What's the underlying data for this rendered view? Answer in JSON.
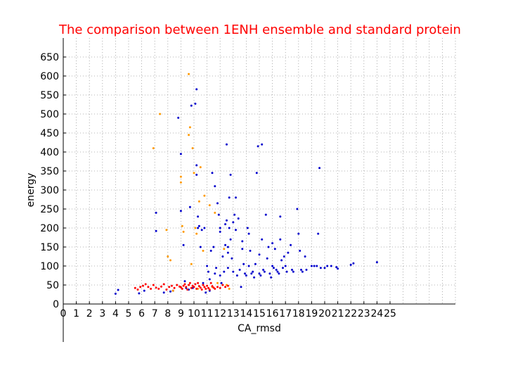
{
  "chart_data": {
    "type": "scatter",
    "title": "The comparison between 1ENH ensemble and standard protein",
    "title_color": "#ff0000",
    "xlabel": "CA_rmsd",
    "ylabel": "energy",
    "xlim": [
      0,
      30
    ],
    "ylim": [
      0,
      700
    ],
    "x_ticks": [
      0,
      1,
      2,
      3,
      4,
      5,
      6,
      7,
      8,
      9,
      10,
      11,
      12,
      13,
      14,
      15,
      16,
      17,
      18,
      19,
      20,
      21,
      22,
      23,
      24,
      25
    ],
    "y_ticks": [
      0,
      50,
      100,
      150,
      200,
      250,
      300,
      350,
      400,
      450,
      500,
      550,
      600,
      650
    ],
    "grid": true,
    "series": [
      {
        "color": "#0000cc",
        "points": [
          [
            4,
            27
          ],
          [
            4.2,
            37
          ],
          [
            5.8,
            28
          ],
          [
            6.2,
            35
          ],
          [
            7.1,
            240
          ],
          [
            7.1,
            192
          ],
          [
            7.7,
            30
          ],
          [
            8.2,
            33
          ],
          [
            8.4,
            35
          ],
          [
            8.8,
            490
          ],
          [
            9,
            395
          ],
          [
            9,
            245
          ],
          [
            9.2,
            155
          ],
          [
            9.3,
            60
          ],
          [
            9.4,
            42
          ],
          [
            9.6,
            38
          ],
          [
            9.7,
            255
          ],
          [
            9.8,
            522
          ],
          [
            9.9,
            42
          ],
          [
            10.1,
            527
          ],
          [
            10.2,
            565
          ],
          [
            10.2,
            365
          ],
          [
            10.2,
            340
          ],
          [
            10.3,
            230
          ],
          [
            10.3,
            200
          ],
          [
            10.4,
            205
          ],
          [
            10.5,
            150
          ],
          [
            10.6,
            195
          ],
          [
            10.7,
            55
          ],
          [
            10.8,
            200
          ],
          [
            10.9,
            30
          ],
          [
            11,
            100
          ],
          [
            11.1,
            85
          ],
          [
            11.2,
            65
          ],
          [
            11.2,
            35
          ],
          [
            11.3,
            140
          ],
          [
            11.4,
            345
          ],
          [
            11.5,
            150
          ],
          [
            11.6,
            310
          ],
          [
            11.6,
            80
          ],
          [
            11.7,
            95
          ],
          [
            11.8,
            265
          ],
          [
            11.9,
            235
          ],
          [
            12,
            200
          ],
          [
            12,
            190
          ],
          [
            12,
            75
          ],
          [
            12.1,
            55
          ],
          [
            12.2,
            125
          ],
          [
            12.3,
            85
          ],
          [
            12.4,
            210
          ],
          [
            12.4,
            155
          ],
          [
            12.5,
            420
          ],
          [
            12.5,
            220
          ],
          [
            12.6,
            150
          ],
          [
            12.6,
            135
          ],
          [
            12.6,
            95
          ],
          [
            12.7,
            280
          ],
          [
            12.7,
            200
          ],
          [
            12.8,
            340
          ],
          [
            12.8,
            170
          ],
          [
            12.9,
            120
          ],
          [
            13,
            215
          ],
          [
            13,
            85
          ],
          [
            13.1,
            235
          ],
          [
            13.2,
            280
          ],
          [
            13.2,
            195
          ],
          [
            13.3,
            75
          ],
          [
            13.4,
            225
          ],
          [
            13.5,
            90
          ],
          [
            13.6,
            45
          ],
          [
            13.7,
            165
          ],
          [
            13.7,
            145
          ],
          [
            13.8,
            105
          ],
          [
            13.9,
            80
          ],
          [
            14,
            75
          ],
          [
            14.1,
            200
          ],
          [
            14.2,
            185
          ],
          [
            14.2,
            100
          ],
          [
            14.3,
            140
          ],
          [
            14.4,
            80
          ],
          [
            14.5,
            85
          ],
          [
            14.6,
            70
          ],
          [
            14.7,
            105
          ],
          [
            14.8,
            345
          ],
          [
            14.9,
            415
          ],
          [
            15,
            130
          ],
          [
            15,
            80
          ],
          [
            15.1,
            75
          ],
          [
            15.2,
            420
          ],
          [
            15.2,
            170
          ],
          [
            15.3,
            90
          ],
          [
            15.4,
            85
          ],
          [
            15.5,
            235
          ],
          [
            15.6,
            120
          ],
          [
            15.7,
            150
          ],
          [
            15.8,
            80
          ],
          [
            15.9,
            70
          ],
          [
            16,
            160
          ],
          [
            16,
            100
          ],
          [
            16.1,
            95
          ],
          [
            16.2,
            145
          ],
          [
            16.3,
            90
          ],
          [
            16.4,
            85
          ],
          [
            16.5,
            80
          ],
          [
            16.6,
            170
          ],
          [
            16.6,
            230
          ],
          [
            16.7,
            115
          ],
          [
            16.8,
            95
          ],
          [
            16.9,
            125
          ],
          [
            17,
            100
          ],
          [
            17.1,
            85
          ],
          [
            17.2,
            135
          ],
          [
            17.4,
            155
          ],
          [
            17.5,
            90
          ],
          [
            17.6,
            85
          ],
          [
            17.9,
            250
          ],
          [
            18,
            185
          ],
          [
            18.1,
            140
          ],
          [
            18.2,
            90
          ],
          [
            18.3,
            85
          ],
          [
            18.5,
            125
          ],
          [
            18.6,
            90
          ],
          [
            19,
            100
          ],
          [
            19.2,
            100
          ],
          [
            19.4,
            100
          ],
          [
            19.5,
            185
          ],
          [
            19.6,
            358
          ],
          [
            19.7,
            95
          ],
          [
            20,
            95
          ],
          [
            20.2,
            100
          ],
          [
            20.5,
            100
          ],
          [
            20.9,
            97
          ],
          [
            21,
            93
          ],
          [
            22,
            103
          ],
          [
            22.2,
            107
          ],
          [
            24,
            110
          ]
        ]
      },
      {
        "color": "#ff9900",
        "points": [
          [
            6.9,
            410
          ],
          [
            7.4,
            500
          ],
          [
            7.9,
            195
          ],
          [
            8,
            125
          ],
          [
            8.2,
            115
          ],
          [
            8.4,
            35
          ],
          [
            9,
            335
          ],
          [
            9,
            320
          ],
          [
            9.1,
            205
          ],
          [
            9.2,
            190
          ],
          [
            9.6,
            605
          ],
          [
            9.6,
            445
          ],
          [
            9.7,
            465
          ],
          [
            9.8,
            105
          ],
          [
            9.9,
            410
          ],
          [
            10,
            345
          ],
          [
            10.1,
            200
          ],
          [
            10.2,
            185
          ],
          [
            10.3,
            40
          ],
          [
            10.4,
            270
          ],
          [
            10.5,
            360
          ],
          [
            10.7,
            140
          ],
          [
            10.8,
            285
          ],
          [
            11.2,
            260
          ],
          [
            11.4,
            45
          ],
          [
            11.6,
            240
          ],
          [
            11.8,
            55
          ],
          [
            12.3,
            145
          ],
          [
            12.5,
            50
          ],
          [
            12.7,
            40
          ]
        ]
      },
      {
        "color": "#ff0000",
        "points": [
          [
            5.5,
            42
          ],
          [
            5.7,
            38
          ],
          [
            5.9,
            45
          ],
          [
            6.1,
            48
          ],
          [
            6.3,
            52
          ],
          [
            6.5,
            45
          ],
          [
            6.7,
            40
          ],
          [
            6.9,
            50
          ],
          [
            7.1,
            43
          ],
          [
            7.3,
            40
          ],
          [
            7.5,
            46
          ],
          [
            7.7,
            52
          ],
          [
            7.9,
            38
          ],
          [
            8.1,
            45
          ],
          [
            8.3,
            48
          ],
          [
            8.5,
            42
          ],
          [
            8.7,
            50
          ],
          [
            8.9,
            46
          ],
          [
            9,
            44
          ],
          [
            9.1,
            40
          ],
          [
            9.2,
            48
          ],
          [
            9.3,
            52
          ],
          [
            9.4,
            45
          ],
          [
            9.5,
            38
          ],
          [
            9.6,
            50
          ],
          [
            9.7,
            55
          ],
          [
            9.8,
            42
          ],
          [
            9.9,
            48
          ],
          [
            10,
            45
          ],
          [
            10.1,
            52
          ],
          [
            10.2,
            40
          ],
          [
            10.3,
            55
          ],
          [
            10.4,
            47
          ],
          [
            10.5,
            43
          ],
          [
            10.6,
            38
          ],
          [
            10.7,
            50
          ],
          [
            10.8,
            45
          ],
          [
            10.9,
            40
          ],
          [
            11,
            48
          ],
          [
            11.1,
            42
          ],
          [
            11.2,
            38
          ],
          [
            11.3,
            55
          ],
          [
            11.4,
            47
          ],
          [
            11.5,
            43
          ],
          [
            11.6,
            40
          ],
          [
            11.8,
            45
          ],
          [
            12,
            42
          ],
          [
            12.2,
            50
          ],
          [
            12.4,
            45
          ],
          [
            12.6,
            48
          ]
        ]
      }
    ]
  }
}
